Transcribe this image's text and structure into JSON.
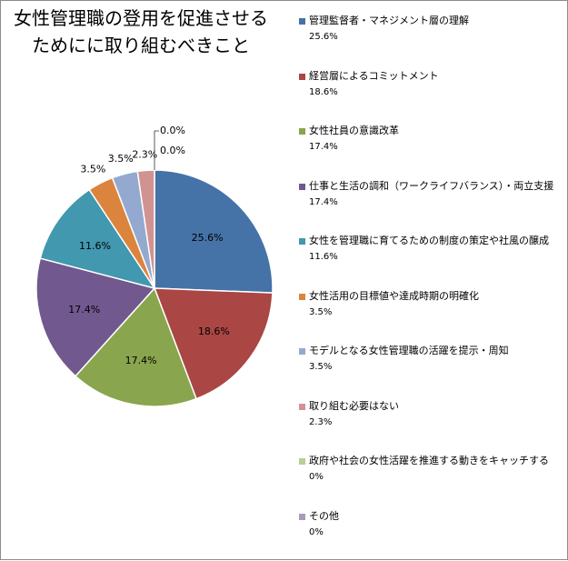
{
  "chart_data": {
    "type": "pie",
    "title_lines": [
      "女性管理職の登用を促進させる",
      "ためにに取り組むべきこと"
    ],
    "legend_placement": "right",
    "slices": [
      {
        "name": "管理監督者・マネジメント層の理解",
        "value": 25.6,
        "inner_label": "25.6%",
        "legend_value": "25.6%",
        "color": "#4572a7"
      },
      {
        "name": "経営層によるコミットメント",
        "value": 18.6,
        "inner_label": "18.6%",
        "legend_value": "18.6%",
        "color": "#aa4643"
      },
      {
        "name": "女性社員の意識改革",
        "value": 17.4,
        "inner_label": "17.4%",
        "legend_value": "17.4%",
        "color": "#89a54e"
      },
      {
        "name": "仕事と生活の調和（ワークライフバランス）・両立支援",
        "value": 17.4,
        "inner_label": "17.4%",
        "legend_value": "17.4%",
        "color": "#71588f"
      },
      {
        "name": "女性を管理職に育てるための制度の策定や社風の醸成",
        "value": 11.6,
        "inner_label": "11.6%",
        "legend_value": "11.6%",
        "color": "#4198af"
      },
      {
        "name": "女性活用の目標値や達成時期の明確化",
        "value": 3.5,
        "inner_label": "3.5%",
        "legend_value": "3.5%",
        "color": "#db843d"
      },
      {
        "name": "モデルとなる女性管理職の活躍を提示・周知",
        "value": 3.5,
        "inner_label": "3.5%",
        "legend_value": "3.5%",
        "color": "#93a9cf"
      },
      {
        "name": "取り組む必要はない",
        "value": 2.3,
        "inner_label": "2.3%",
        "legend_value": "2.3%",
        "color": "#d19392"
      },
      {
        "name": "政府や社会の女性活躍を推進する動きをキャッチする",
        "value": 0.0,
        "inner_label": "0.0%",
        "legend_value": "0%",
        "color": "#b9cd96"
      },
      {
        "name": "その他",
        "value": 0.0,
        "inner_label": "0.0%",
        "legend_value": "0%",
        "color": "#a99bbd"
      }
    ]
  }
}
